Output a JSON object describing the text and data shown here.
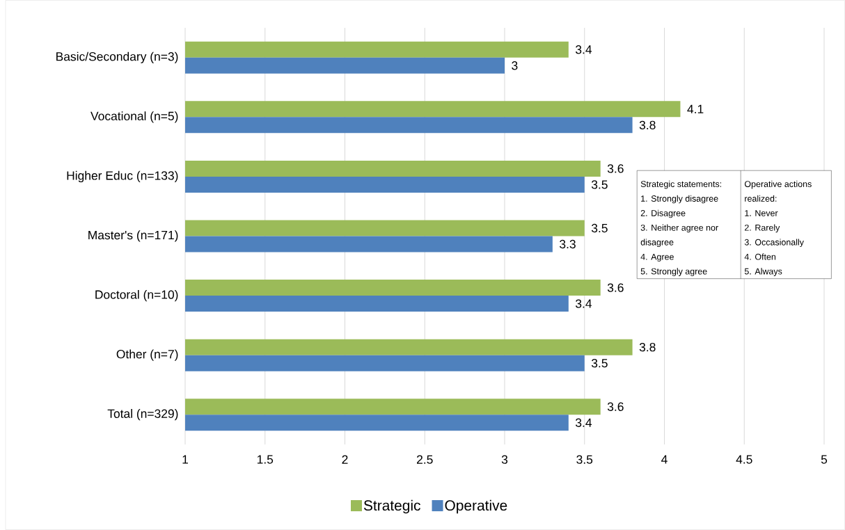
{
  "chart_data": {
    "type": "bar",
    "orientation": "horizontal",
    "categories": [
      "Basic/Secondary (n=3)",
      "Vocational (n=5)",
      "Higher Educ (n=133)",
      "Master's (n=171)",
      "Doctoral (n=10)",
      "Other (n=7)",
      "Total (n=329)"
    ],
    "series": [
      {
        "name": "Strategic",
        "color": "#9bbb59",
        "values": [
          3.4,
          4.1,
          3.6,
          3.5,
          3.6,
          3.8,
          3.6
        ]
      },
      {
        "name": "Operative",
        "color": "#4f81bd",
        "values": [
          3,
          3.8,
          3.5,
          3.3,
          3.4,
          3.5,
          3.4
        ]
      }
    ],
    "xlim": [
      1,
      5
    ],
    "xticks": [
      1,
      1.5,
      2,
      2.5,
      3,
      3.5,
      4,
      4.5,
      5
    ],
    "grid": "x",
    "legend": "bottom",
    "data_labels": true,
    "annotations": [
      "Strategic statements:",
      "1. Strongly disagree",
      "2. Disagree",
      "3. Neither agree nor disagree",
      "4. Agree",
      "5. Strongly agree",
      "Operative actions realized:",
      "1. Never",
      "2. Rarely",
      "3. Occasionally",
      "4. Often",
      "5. Always"
    ]
  }
}
